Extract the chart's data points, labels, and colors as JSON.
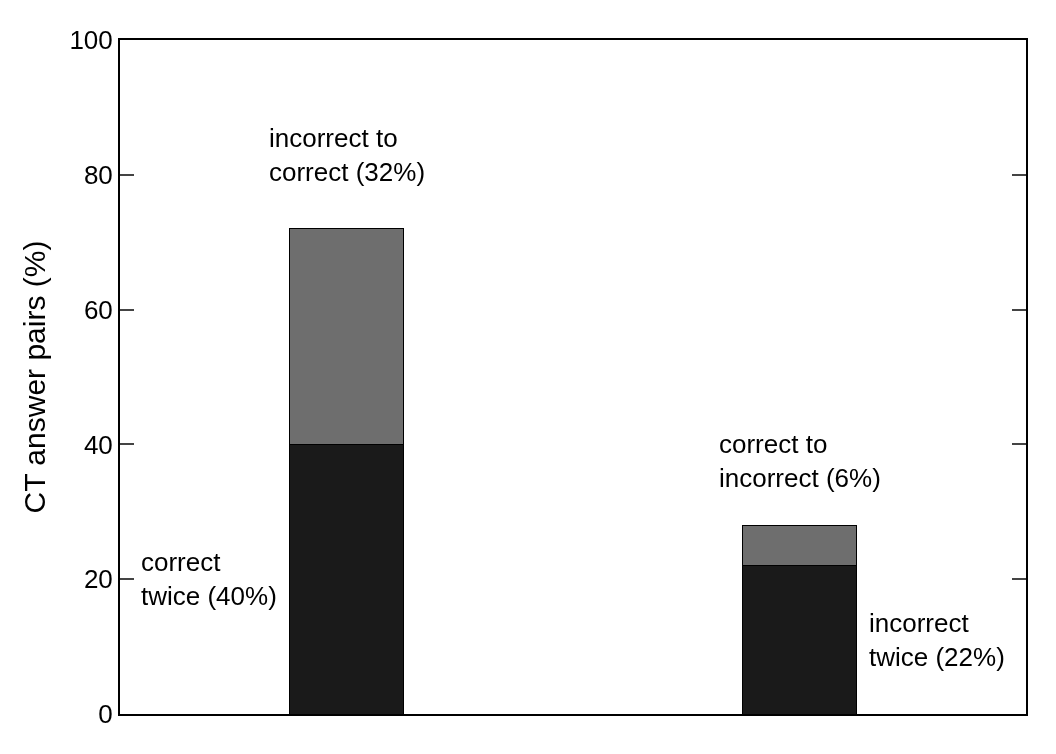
{
  "chart_data": {
    "type": "bar",
    "stacked": true,
    "categories": [
      null,
      null
    ],
    "series": [
      {
        "color": "#1a1a1a",
        "values": [
          40,
          22
        ]
      },
      {
        "color": "#6e6e6e",
        "values": [
          32,
          6
        ]
      }
    ],
    "ylabel": "CT answer pairs (%)",
    "ylim": [
      0,
      100
    ],
    "yticks": [
      0,
      20,
      40,
      60,
      80,
      100
    ],
    "tick_labels": "y",
    "annotations": [
      "incorrect to\ncorrect (32%)",
      "correct\ntwice (40%)",
      "correct to\nincorrect (6%)",
      "incorrect\ntwice (22%)"
    ]
  }
}
